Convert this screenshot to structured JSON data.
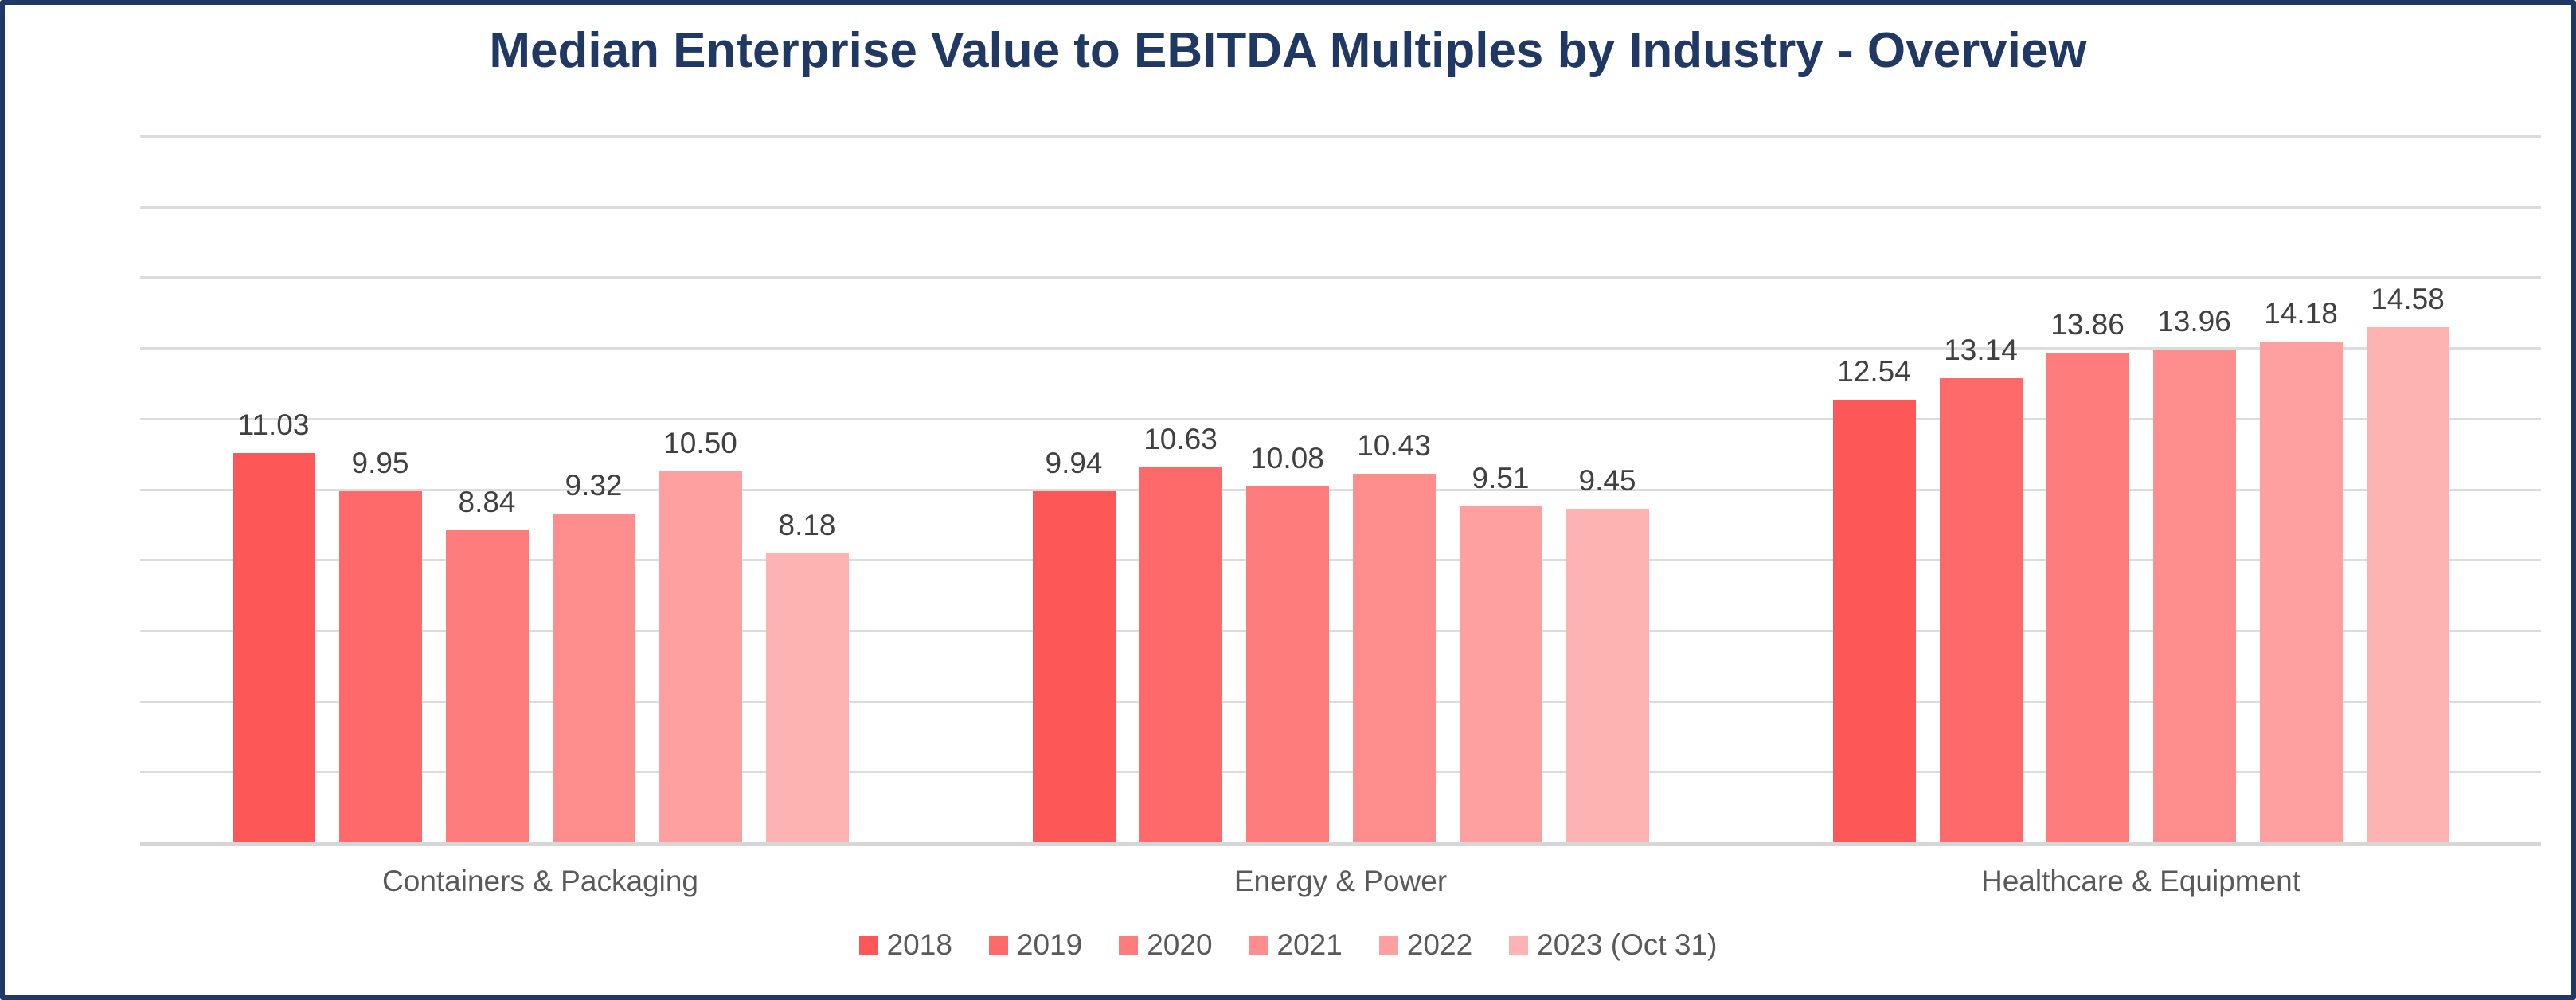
{
  "chart_data": {
    "type": "bar",
    "title": "Median Enterprise Value to EBITDA Multiples by Industry - Overview",
    "categories": [
      "Containers & Packaging",
      "Energy & Power",
      "Healthcare & Equipment"
    ],
    "series": [
      {
        "name": "2018",
        "color": "#FE5757",
        "values": [
          11.03,
          9.94,
          12.54
        ]
      },
      {
        "name": "2019",
        "color": "#FE6A6A",
        "values": [
          9.95,
          10.63,
          13.14
        ]
      },
      {
        "name": "2020",
        "color": "#FE7C7C",
        "values": [
          8.84,
          10.08,
          13.86
        ]
      },
      {
        "name": "2021",
        "color": "#FE8E8E",
        "values": [
          9.32,
          10.43,
          13.96
        ]
      },
      {
        "name": "2022",
        "color": "#FEA0A0",
        "values": [
          10.5,
          9.51,
          14.18
        ]
      },
      {
        "name": "2023 (Oct 31)",
        "color": "#FEB3B3",
        "values": [
          8.18,
          9.45,
          14.58
        ]
      }
    ],
    "ylim": [
      0,
      20
    ],
    "ytick_step": 2,
    "ytick_decimals": 2,
    "value_label_decimals": 2,
    "grid": true,
    "value_labels": true,
    "legend_position": "bottom",
    "xlabel": "",
    "ylabel": ""
  },
  "style_colors": {
    "frame_border": "#1F3864",
    "title_text": "#1F3864",
    "axis_tick_text": "#595959",
    "category_text": "#595959",
    "value_label_text": "#404040",
    "legend_text": "#595959",
    "gridline": "#DCDCDC",
    "axis_line": "#D6D6D6",
    "background": "#FFFFFF"
  }
}
